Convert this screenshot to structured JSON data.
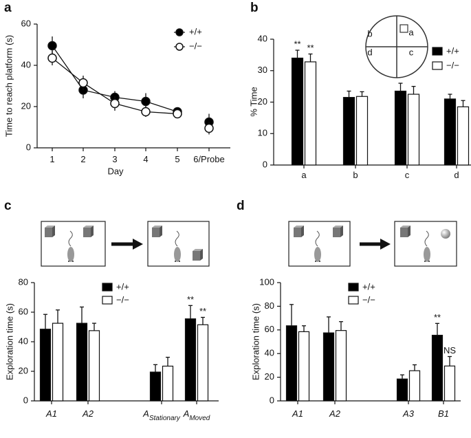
{
  "chart_data": [
    {
      "type": "line",
      "panel": "a",
      "xlabel": "Day",
      "ylabel": "Time to reach platform (s)",
      "categories": [
        "1",
        "2",
        "3",
        "4",
        "5",
        "6/Probe"
      ],
      "ylim": [
        0,
        60
      ],
      "yticks": [
        0,
        20,
        40,
        60
      ],
      "series": [
        {
          "name": "+/+",
          "color": "#000000",
          "values": [
            49.5,
            28,
            24.5,
            22.5,
            17.5,
            12.5
          ],
          "errors": [
            4.5,
            4,
            3,
            4,
            2,
            4
          ]
        },
        {
          "name": "−/−",
          "color": "#ffffff",
          "values": [
            43.5,
            31.5,
            21.5,
            17.5,
            16.5,
            9.5
          ],
          "errors": [
            3.5,
            3.5,
            3.5,
            2.5,
            2,
            3
          ]
        }
      ]
    },
    {
      "type": "bar",
      "panel": "b",
      "ylabel": "% Time",
      "categories": [
        "a",
        "b",
        "c",
        "d"
      ],
      "inset_labels": [
        "b",
        "a",
        "d",
        "c"
      ],
      "ylim": [
        0,
        40
      ],
      "yticks": [
        0,
        10,
        20,
        30,
        40
      ],
      "series": [
        {
          "name": "+/+",
          "color": "#000000",
          "values": [
            34,
            21.5,
            23.5,
            21
          ],
          "errors": [
            2.5,
            2,
            2.5,
            1.5
          ],
          "annotations": [
            "**",
            null,
            null,
            null
          ]
        },
        {
          "name": "−/−",
          "color": "#ffffff",
          "values": [
            32.8,
            21.8,
            22.5,
            18.5
          ],
          "errors": [
            2.5,
            1.5,
            2.5,
            2
          ],
          "annotations": [
            "**",
            null,
            null,
            null
          ]
        }
      ]
    },
    {
      "type": "bar",
      "panel": "c",
      "ylabel": "Exploration time (s)",
      "categories": [
        "A1",
        "A2",
        "A",
        "A"
      ],
      "category_subscripts": [
        null,
        null,
        "Stationary",
        "Moved"
      ],
      "ylim": [
        0,
        80
      ],
      "yticks": [
        0,
        20,
        40,
        60,
        80
      ],
      "series": [
        {
          "name": "+/+",
          "color": "#000000",
          "values": [
            48.5,
            52.5,
            19.5,
            55.5
          ],
          "errors": [
            10,
            11,
            5,
            9
          ],
          "annotations": [
            null,
            null,
            null,
            "**"
          ]
        },
        {
          "name": "−/−",
          "color": "#ffffff",
          "values": [
            52.5,
            47.5,
            23.5,
            51.5
          ],
          "errors": [
            9,
            5,
            6,
            5
          ],
          "annotations": [
            null,
            null,
            null,
            "**"
          ]
        }
      ]
    },
    {
      "type": "bar",
      "panel": "d",
      "ylabel": "Exploration time (s)",
      "categories": [
        "A1",
        "A2",
        "A3",
        "B1"
      ],
      "ylim": [
        0,
        100
      ],
      "yticks": [
        0,
        20,
        40,
        60,
        80,
        100
      ],
      "series": [
        {
          "name": "+/+",
          "color": "#000000",
          "values": [
            63.5,
            57.5,
            18.5,
            55.5
          ],
          "errors": [
            18,
            13.5,
            3.5,
            10
          ],
          "annotations": [
            null,
            null,
            null,
            "**"
          ]
        },
        {
          "name": "−/−",
          "color": "#ffffff",
          "values": [
            58.5,
            59.5,
            25.5,
            29.5
          ],
          "errors": [
            5,
            7.5,
            5,
            8
          ],
          "annotations": [
            null,
            null,
            null,
            "NS"
          ]
        }
      ]
    }
  ]
}
